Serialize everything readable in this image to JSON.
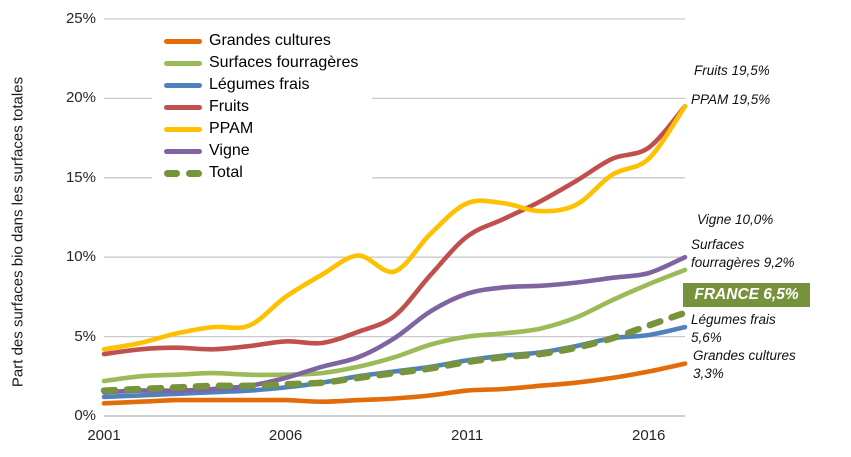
{
  "chart_data": {
    "type": "line",
    "ylabel": "Part des surfaces bio dans les surfaces totales",
    "x": [
      2001,
      2002,
      2003,
      2004,
      2005,
      2006,
      2007,
      2008,
      2009,
      2010,
      2011,
      2012,
      2013,
      2014,
      2015,
      2016,
      2017
    ],
    "x_tick_labels": [
      "2001",
      "2006",
      "2011",
      "2016"
    ],
    "x_tick_years": [
      2001,
      2006,
      2011,
      2016
    ],
    "y_tick_labels": [
      "0%",
      "5%",
      "10%",
      "15%",
      "20%",
      "25%"
    ],
    "y_tick_values": [
      0,
      5,
      10,
      15,
      20,
      25
    ],
    "ylim": [
      0,
      25
    ],
    "grid": "horizontal",
    "grid_color": "#c9c9c9",
    "legend_position": "top-left-inside",
    "series": [
      {
        "name": "Grandes cultures",
        "color": "#E36C0A",
        "dashed": false,
        "values": [
          0.8,
          0.9,
          1.0,
          1.0,
          1.0,
          1.0,
          0.9,
          1.0,
          1.1,
          1.3,
          1.6,
          1.7,
          1.9,
          2.1,
          2.4,
          2.8,
          3.3
        ]
      },
      {
        "name": "Surfaces fourragères",
        "color": "#9BBB59",
        "dashed": false,
        "values": [
          2.2,
          2.5,
          2.6,
          2.7,
          2.6,
          2.6,
          2.7,
          3.1,
          3.7,
          4.5,
          5.0,
          5.2,
          5.5,
          6.2,
          7.3,
          8.3,
          9.2
        ]
      },
      {
        "name": "Légumes frais",
        "color": "#4F81BD",
        "dashed": false,
        "values": [
          1.2,
          1.3,
          1.4,
          1.5,
          1.6,
          1.8,
          2.1,
          2.5,
          2.8,
          3.1,
          3.5,
          3.8,
          4.0,
          4.4,
          4.9,
          5.1,
          5.6
        ]
      },
      {
        "name": "Fruits",
        "color": "#C0504D",
        "dashed": false,
        "values": [
          3.9,
          4.2,
          4.3,
          4.2,
          4.4,
          4.7,
          4.6,
          5.3,
          6.3,
          8.9,
          11.3,
          12.4,
          13.5,
          14.8,
          16.2,
          16.9,
          19.5
        ]
      },
      {
        "name": "PPAM",
        "color": "#FFC000",
        "dashed": false,
        "values": [
          4.2,
          4.6,
          5.2,
          5.6,
          5.7,
          7.5,
          8.9,
          10.1,
          9.1,
          11.5,
          13.4,
          13.4,
          12.9,
          13.3,
          15.2,
          16.2,
          19.5
        ]
      },
      {
        "name": "Vigne",
        "color": "#8064A2",
        "dashed": false,
        "values": [
          1.5,
          1.6,
          1.6,
          1.7,
          1.9,
          2.4,
          3.1,
          3.7,
          4.9,
          6.6,
          7.7,
          8.1,
          8.2,
          8.4,
          8.7,
          9.0,
          10.0
        ]
      },
      {
        "name": "Total",
        "color": "#77933C",
        "dashed": true,
        "values": [
          1.6,
          1.7,
          1.8,
          1.9,
          1.9,
          2.0,
          2.1,
          2.4,
          2.7,
          3.0,
          3.4,
          3.7,
          3.9,
          4.3,
          4.9,
          5.7,
          6.5
        ]
      }
    ],
    "annotations": {
      "fruits": "Fruits 19,5%",
      "ppam": "PPAM 19,5%",
      "vigne": "Vigne 10,0%",
      "fourrageres": "Surfaces fourragères 9,2%",
      "france": "FRANCE 6,5%",
      "france_bg": "#76923C",
      "legumes": "Légumes frais 5,6%",
      "grandes_cultures": "Grandes cultures 3,3%"
    }
  }
}
